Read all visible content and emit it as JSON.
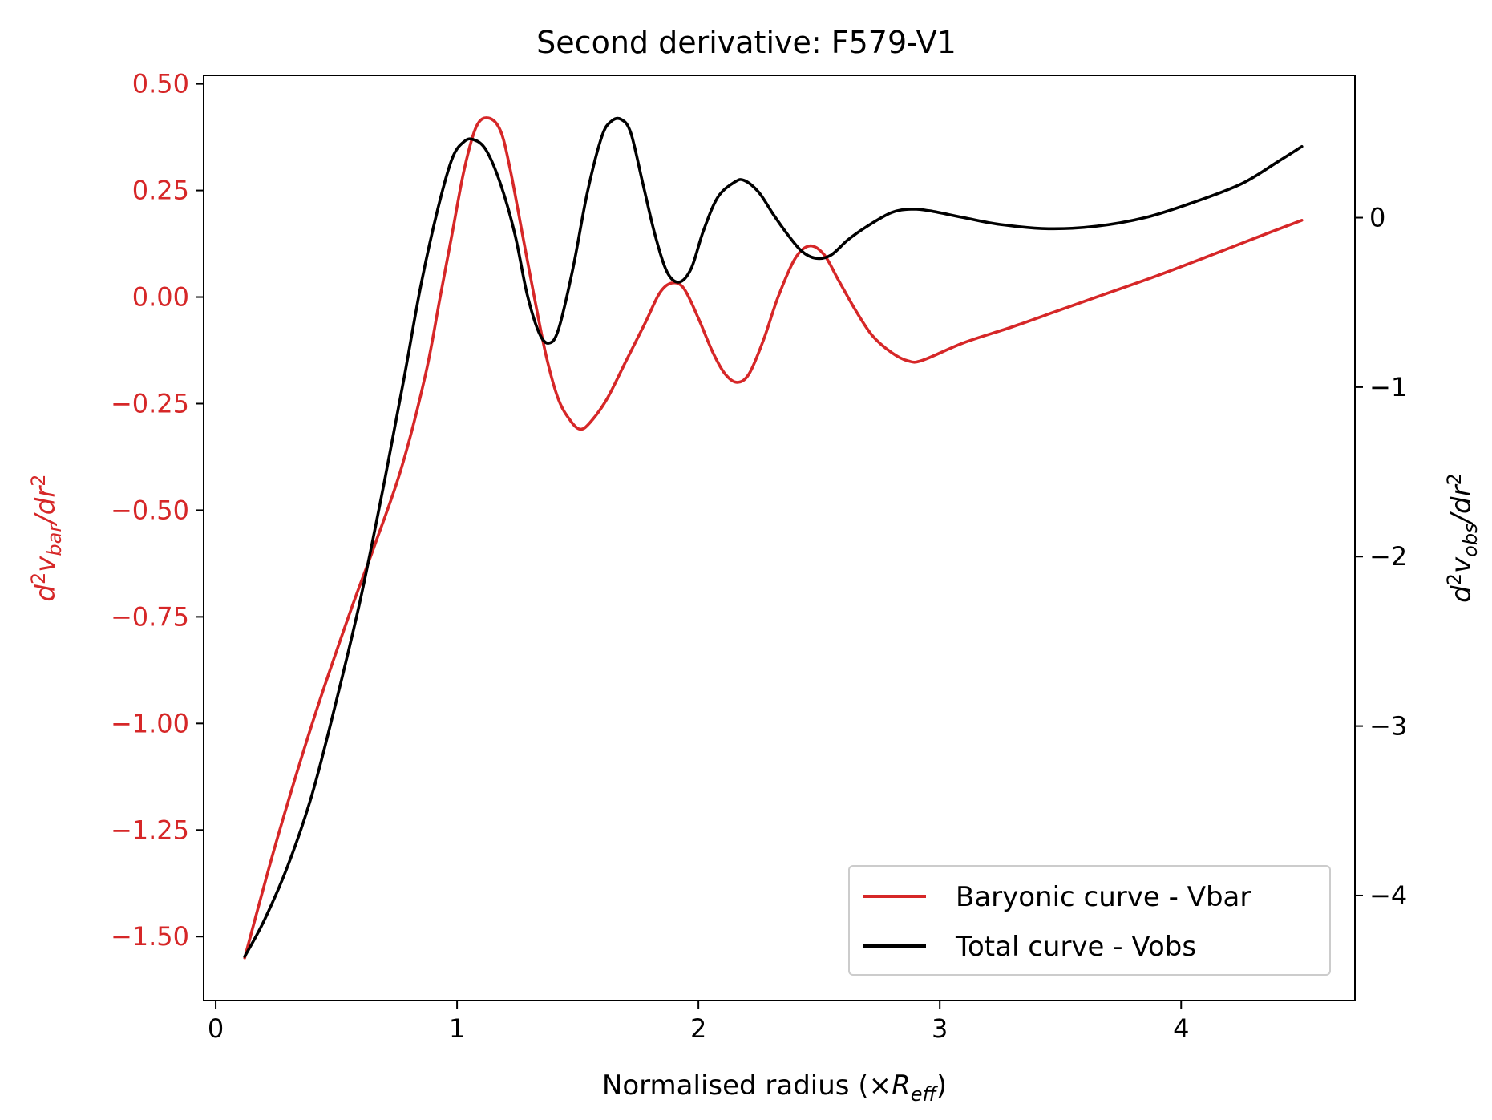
{
  "chart_data": {
    "type": "line",
    "title": "Second derivative: F579-V1",
    "xlabel": {
      "main": "Normalised radius (×",
      "var": "R",
      "sub": "eff",
      "tail": ")"
    },
    "ylabel_left": {
      "d": "d",
      "sup": "2",
      "v": "v",
      "sub": "bar",
      "slash": "/",
      "dr": "dr",
      "sup2": "2"
    },
    "ylabel_right": {
      "d": "d",
      "sup": "2",
      "v": "v",
      "sub": "obs",
      "slash": "/",
      "dr": "dr",
      "sup2": "2"
    },
    "xlim": [
      -0.05,
      4.72
    ],
    "ylim_left": [
      -1.65,
      0.52
    ],
    "ylim_right": [
      -4.62,
      0.84
    ],
    "x_ticks": [
      {
        "value": 0,
        "label": "0"
      },
      {
        "value": 1,
        "label": "1"
      },
      {
        "value": 2,
        "label": "2"
      },
      {
        "value": 3,
        "label": "3"
      },
      {
        "value": 4,
        "label": "4"
      }
    ],
    "y_left_ticks": [
      {
        "value": 0.5,
        "label": "0.50"
      },
      {
        "value": 0.25,
        "label": "0.25"
      },
      {
        "value": 0.0,
        "label": "0.00"
      },
      {
        "value": -0.25,
        "label": "−0.25"
      },
      {
        "value": -0.5,
        "label": "−0.50"
      },
      {
        "value": -0.75,
        "label": "−0.75"
      },
      {
        "value": -1.0,
        "label": "−1.00"
      },
      {
        "value": -1.25,
        "label": "−1.25"
      },
      {
        "value": -1.5,
        "label": "−1.50"
      }
    ],
    "y_right_ticks": [
      {
        "value": 0,
        "label": "0"
      },
      {
        "value": -1,
        "label": "−1"
      },
      {
        "value": -2,
        "label": "−2"
      },
      {
        "value": -3,
        "label": "−3"
      },
      {
        "value": -4,
        "label": "−4"
      }
    ],
    "legend_position": "lower-right",
    "left_axis_color": "#d62728",
    "right_axis_color": "#000000",
    "series": [
      {
        "name": "Baryonic curve - Vbar",
        "axis": "left",
        "color": "#d62728",
        "points": [
          [
            0.12,
            -1.55
          ],
          [
            0.25,
            -1.28
          ],
          [
            0.4,
            -1.0
          ],
          [
            0.55,
            -0.75
          ],
          [
            0.66,
            -0.58
          ],
          [
            0.77,
            -0.4
          ],
          [
            0.87,
            -0.18
          ],
          [
            0.93,
            0.0
          ],
          [
            0.98,
            0.15
          ],
          [
            1.03,
            0.3
          ],
          [
            1.08,
            0.4
          ],
          [
            1.13,
            0.42
          ],
          [
            1.18,
            0.39
          ],
          [
            1.22,
            0.3
          ],
          [
            1.27,
            0.15
          ],
          [
            1.32,
            0.0
          ],
          [
            1.37,
            -0.14
          ],
          [
            1.42,
            -0.24
          ],
          [
            1.47,
            -0.29
          ],
          [
            1.51,
            -0.31
          ],
          [
            1.55,
            -0.295
          ],
          [
            1.62,
            -0.24
          ],
          [
            1.7,
            -0.15
          ],
          [
            1.78,
            -0.06
          ],
          [
            1.84,
            0.01
          ],
          [
            1.89,
            0.033
          ],
          [
            1.94,
            0.02
          ],
          [
            2.0,
            -0.05
          ],
          [
            2.06,
            -0.13
          ],
          [
            2.11,
            -0.18
          ],
          [
            2.16,
            -0.2
          ],
          [
            2.21,
            -0.18
          ],
          [
            2.27,
            -0.1
          ],
          [
            2.33,
            0.0
          ],
          [
            2.4,
            0.09
          ],
          [
            2.46,
            0.12
          ],
          [
            2.52,
            0.1
          ],
          [
            2.58,
            0.04
          ],
          [
            2.65,
            -0.03
          ],
          [
            2.72,
            -0.09
          ],
          [
            2.8,
            -0.13
          ],
          [
            2.87,
            -0.15
          ],
          [
            2.93,
            -0.148
          ],
          [
            3.1,
            -0.107
          ],
          [
            3.3,
            -0.07
          ],
          [
            3.5,
            -0.03
          ],
          [
            3.7,
            0.01
          ],
          [
            3.9,
            0.05
          ],
          [
            4.1,
            0.093
          ],
          [
            4.3,
            0.137
          ],
          [
            4.5,
            0.18
          ]
        ]
      },
      {
        "name": "Total curve - Vobs",
        "axis": "right",
        "color": "#000000",
        "points": [
          [
            0.12,
            -4.36
          ],
          [
            0.2,
            -4.15
          ],
          [
            0.3,
            -3.82
          ],
          [
            0.4,
            -3.4
          ],
          [
            0.5,
            -2.85
          ],
          [
            0.6,
            -2.25
          ],
          [
            0.7,
            -1.55
          ],
          [
            0.78,
            -0.95
          ],
          [
            0.85,
            -0.4
          ],
          [
            0.92,
            0.05
          ],
          [
            0.98,
            0.35
          ],
          [
            1.03,
            0.45
          ],
          [
            1.07,
            0.46
          ],
          [
            1.12,
            0.4
          ],
          [
            1.18,
            0.2
          ],
          [
            1.24,
            -0.1
          ],
          [
            1.29,
            -0.45
          ],
          [
            1.34,
            -0.68
          ],
          [
            1.38,
            -0.74
          ],
          [
            1.42,
            -0.66
          ],
          [
            1.48,
            -0.3
          ],
          [
            1.54,
            0.15
          ],
          [
            1.6,
            0.48
          ],
          [
            1.64,
            0.57
          ],
          [
            1.68,
            0.58
          ],
          [
            1.72,
            0.5
          ],
          [
            1.77,
            0.2
          ],
          [
            1.82,
            -0.1
          ],
          [
            1.87,
            -0.32
          ],
          [
            1.92,
            -0.38
          ],
          [
            1.97,
            -0.3
          ],
          [
            2.02,
            -0.08
          ],
          [
            2.08,
            0.12
          ],
          [
            2.15,
            0.21
          ],
          [
            2.19,
            0.22
          ],
          [
            2.25,
            0.15
          ],
          [
            2.31,
            0.02
          ],
          [
            2.37,
            -0.1
          ],
          [
            2.43,
            -0.2
          ],
          [
            2.49,
            -0.24
          ],
          [
            2.55,
            -0.22
          ],
          [
            2.62,
            -0.13
          ],
          [
            2.7,
            -0.05
          ],
          [
            2.8,
            0.03
          ],
          [
            2.88,
            0.05
          ],
          [
            2.96,
            0.04
          ],
          [
            3.1,
            0.0
          ],
          [
            3.25,
            -0.04
          ],
          [
            3.45,
            -0.065
          ],
          [
            3.65,
            -0.05
          ],
          [
            3.85,
            0.0
          ],
          [
            4.05,
            0.09
          ],
          [
            4.25,
            0.2
          ],
          [
            4.4,
            0.33
          ],
          [
            4.5,
            0.42
          ]
        ]
      }
    ]
  }
}
